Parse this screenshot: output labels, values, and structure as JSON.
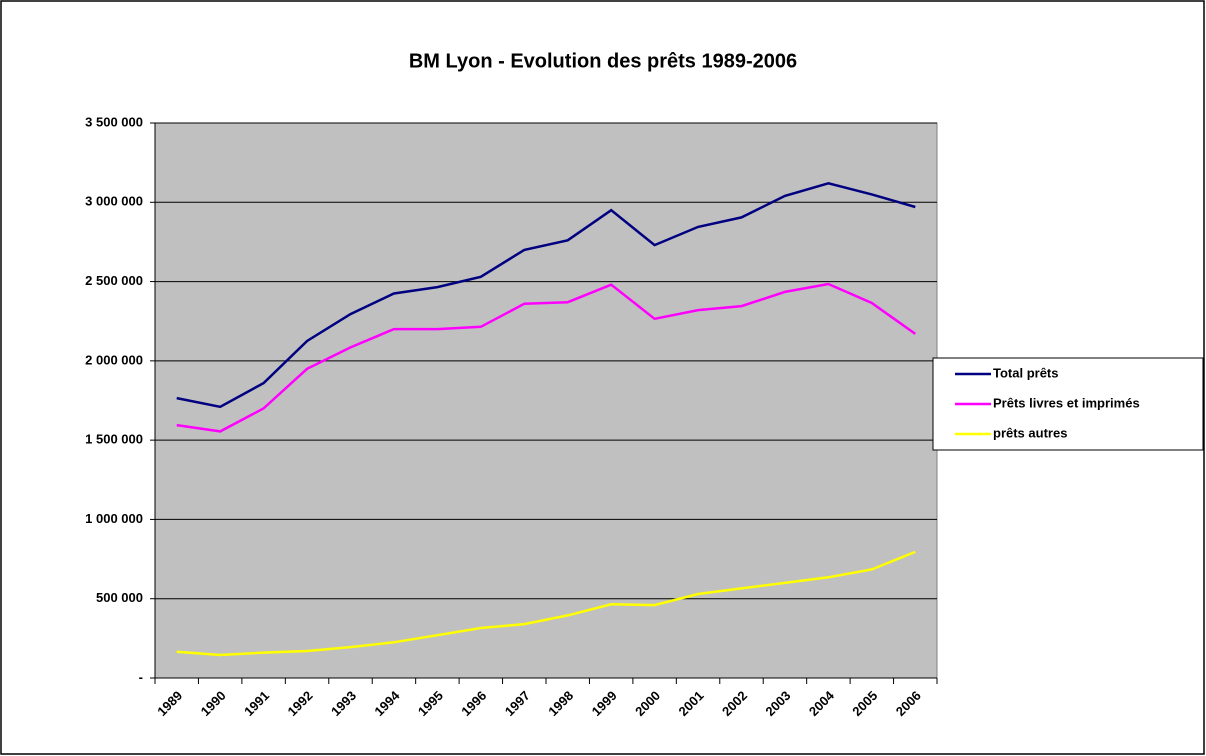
{
  "chart_data": {
    "type": "line",
    "title": "BM Lyon - Evolution des prêts 1989-2006",
    "categories": [
      "1989",
      "1990",
      "1991",
      "1992",
      "1993",
      "1994",
      "1995",
      "1996",
      "1997",
      "1998",
      "1999",
      "2000",
      "2001",
      "2002",
      "2003",
      "2004",
      "2005",
      "2006"
    ],
    "series": [
      {
        "name": "Total prêts",
        "color": "#000080",
        "values": [
          1765000,
          1710000,
          1860000,
          2125000,
          2295000,
          2425000,
          2465000,
          2530000,
          2700000,
          2760000,
          2950000,
          2730000,
          2845000,
          2905000,
          3040000,
          3120000,
          3050000,
          2970000
        ]
      },
      {
        "name": "Prêts livres et imprimés",
        "color": "#ff00ff",
        "values": [
          1595000,
          1555000,
          1700000,
          1950000,
          2085000,
          2200000,
          2200000,
          2215000,
          2360000,
          2370000,
          2480000,
          2265000,
          2320000,
          2345000,
          2435000,
          2485000,
          2365000,
          2170000
        ]
      },
      {
        "name": "prêts autres",
        "color": "#ffff00",
        "values": [
          165000,
          145000,
          160000,
          170000,
          195000,
          225000,
          270000,
          315000,
          340000,
          395000,
          465000,
          460000,
          530000,
          565000,
          600000,
          635000,
          685000,
          795000
        ]
      }
    ],
    "ylim": [
      0,
      3500000
    ],
    "yticks": [
      {
        "value": 0,
        "label": "-"
      },
      {
        "value": 500000,
        "label": "500 000"
      },
      {
        "value": 1000000,
        "label": "1 000 000"
      },
      {
        "value": 1500000,
        "label": "1 500 000"
      },
      {
        "value": 2000000,
        "label": "2 000 000"
      },
      {
        "value": 2500000,
        "label": "2 500 000"
      },
      {
        "value": 3000000,
        "label": "3 000 000"
      },
      {
        "value": 3500000,
        "label": "3 500 000"
      }
    ],
    "grid": true,
    "legend": "right",
    "plot_background": "#c0c0c0"
  }
}
